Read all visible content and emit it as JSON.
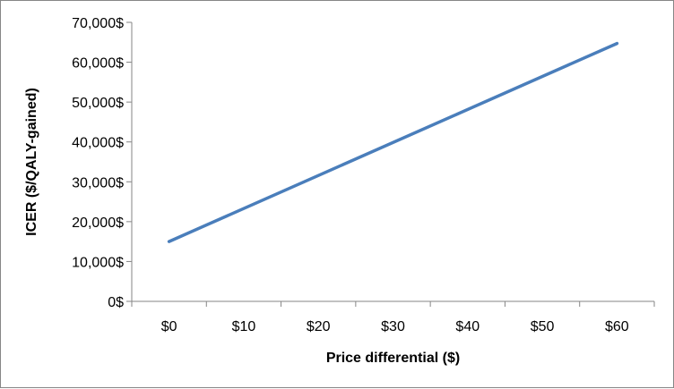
{
  "chart_data": {
    "type": "line",
    "title": "",
    "xlabel": "Price differential ($)",
    "ylabel": "ICER ($/QALY-gained)",
    "x_categories": [
      "$0",
      "$10",
      "$20",
      "$30",
      "$40",
      "$50",
      "$60"
    ],
    "x_values": [
      0,
      10,
      20,
      30,
      40,
      50,
      60
    ],
    "xlim": [
      0,
      60
    ],
    "ylim": [
      0,
      70000
    ],
    "y_ticks": [
      0,
      10000,
      20000,
      30000,
      40000,
      50000,
      60000,
      70000
    ],
    "y_tick_labels": [
      "0$",
      "10,000$",
      "20,000$",
      "30,000$",
      "40,000$",
      "50,000$",
      "60,000$",
      "70,000$"
    ],
    "grid": false,
    "legend": "none",
    "series": [
      {
        "color": "#4a7ebb",
        "x": [
          0,
          60
        ],
        "y": [
          15000,
          64700
        ]
      }
    ]
  }
}
